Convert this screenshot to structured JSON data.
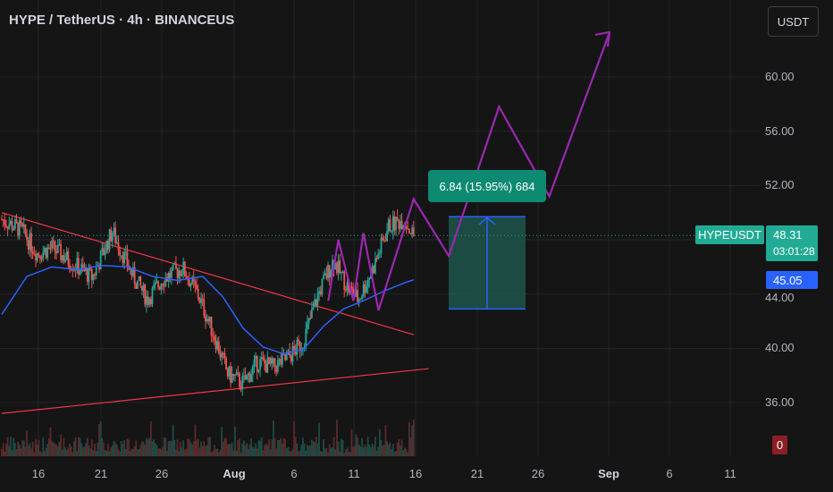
{
  "header": {
    "title": "HYPE / TetherUS · 4h · BINANCEUS",
    "currency_button": "USDT"
  },
  "price_scale": {
    "ticks": [
      "60.00",
      "56.00",
      "52.00",
      "44.00",
      "40.00",
      "36.00"
    ]
  },
  "time_scale": {
    "ticks": [
      {
        "label": "16",
        "bold": false
      },
      {
        "label": "21",
        "bold": false
      },
      {
        "label": "26",
        "bold": false
      },
      {
        "label": "Aug",
        "bold": true
      },
      {
        "label": "6",
        "bold": false
      },
      {
        "label": "11",
        "bold": false
      },
      {
        "label": "16",
        "bold": false
      },
      {
        "label": "21",
        "bold": false
      },
      {
        "label": "26",
        "bold": false
      },
      {
        "label": "Sep",
        "bold": true
      },
      {
        "label": "6",
        "bold": false
      },
      {
        "label": "11",
        "bold": false
      }
    ]
  },
  "tags": {
    "symbol": "HYPEUSDT",
    "last_price": "48.31",
    "countdown": "03:01:28",
    "ma_value": "45.05",
    "volume": "0"
  },
  "measure": {
    "label": "6.84 (15.95%) 684",
    "from_price": 42.9,
    "to_price": 49.7
  },
  "colors": {
    "background": "#151515",
    "up_candle": "#26a69a",
    "down_candle": "#ef5350",
    "moving_average": "#2962ff",
    "trendline": "#f23645",
    "projection": "#9c27b0",
    "measure_fill": "#1e5e52",
    "measure_line": "#2962ff",
    "accent_green": "#22ab94"
  },
  "chart_data": {
    "type": "candlestick",
    "title": "HYPE / TetherUS · 4h · BINANCEUS",
    "y_axis": {
      "min": 34,
      "max": 64,
      "unit": "USDT"
    },
    "last_price": 48.31,
    "moving_average_last": 45.05,
    "candle_waypoints": [
      {
        "t": 0,
        "p": 49.5
      },
      {
        "t": 4,
        "p": 48.7
      },
      {
        "t": 7,
        "p": 47.0
      },
      {
        "t": 10,
        "p": 47.4
      },
      {
        "t": 14,
        "p": 46.3
      },
      {
        "t": 18,
        "p": 45.2
      },
      {
        "t": 22,
        "p": 48.6
      },
      {
        "t": 26,
        "p": 45.4
      },
      {
        "t": 29,
        "p": 43.6
      },
      {
        "t": 32,
        "p": 45.1
      },
      {
        "t": 36,
        "p": 45.9
      },
      {
        "t": 39,
        "p": 44.0
      },
      {
        "t": 42,
        "p": 41.2
      },
      {
        "t": 45,
        "p": 38.1
      },
      {
        "t": 48,
        "p": 37.4
      },
      {
        "t": 51,
        "p": 39.0
      },
      {
        "t": 54,
        "p": 38.6
      },
      {
        "t": 57,
        "p": 39.3
      },
      {
        "t": 60,
        "p": 40.5
      },
      {
        "t": 63,
        "p": 44.0
      },
      {
        "t": 66,
        "p": 46.5
      },
      {
        "t": 69,
        "p": 44.4
      },
      {
        "t": 71,
        "p": 43.6
      },
      {
        "t": 74,
        "p": 46.0
      },
      {
        "t": 77,
        "p": 49.0
      },
      {
        "t": 80,
        "p": 49.5
      },
      {
        "t": 82,
        "p": 48.3
      }
    ],
    "moving_average": [
      {
        "t": 0,
        "p": 42.5
      },
      {
        "t": 5,
        "p": 45.3
      },
      {
        "t": 10,
        "p": 46.0
      },
      {
        "t": 15,
        "p": 45.8
      },
      {
        "t": 20,
        "p": 46.1
      },
      {
        "t": 25,
        "p": 46.0
      },
      {
        "t": 30,
        "p": 45.3
      },
      {
        "t": 35,
        "p": 45.0
      },
      {
        "t": 40,
        "p": 45.3
      },
      {
        "t": 44,
        "p": 43.8
      },
      {
        "t": 48,
        "p": 41.5
      },
      {
        "t": 52,
        "p": 40.1
      },
      {
        "t": 56,
        "p": 39.6
      },
      {
        "t": 60,
        "p": 39.9
      },
      {
        "t": 64,
        "p": 41.6
      },
      {
        "t": 68,
        "p": 42.9
      },
      {
        "t": 72,
        "p": 43.5
      },
      {
        "t": 76,
        "p": 44.2
      },
      {
        "t": 80,
        "p": 44.8
      },
      {
        "t": 82,
        "p": 45.05
      }
    ],
    "trendlines": [
      {
        "name": "upper",
        "from": {
          "t": 0,
          "p": 50.0
        },
        "to": {
          "t": 82,
          "p": 41.0
        }
      },
      {
        "name": "lower",
        "from": {
          "t": 0,
          "p": 35.2
        },
        "to": {
          "t": 85,
          "p": 38.5
        }
      }
    ],
    "projection_path": [
      {
        "t": 65,
        "p": 43.5
      },
      {
        "t": 67,
        "p": 48.0
      },
      {
        "t": 70,
        "p": 43.5
      },
      {
        "t": 72,
        "p": 48.5
      },
      {
        "t": 75,
        "p": 42.8
      },
      {
        "t": 82,
        "p": 51.0
      },
      {
        "t": 89,
        "p": 46.8
      },
      {
        "t": 99,
        "p": 57.8
      },
      {
        "t": 109,
        "p": 51.2
      },
      {
        "t": 121,
        "p": 63.3
      }
    ],
    "projection_arrow_tip": {
      "t": 121,
      "p": 63.3
    }
  }
}
